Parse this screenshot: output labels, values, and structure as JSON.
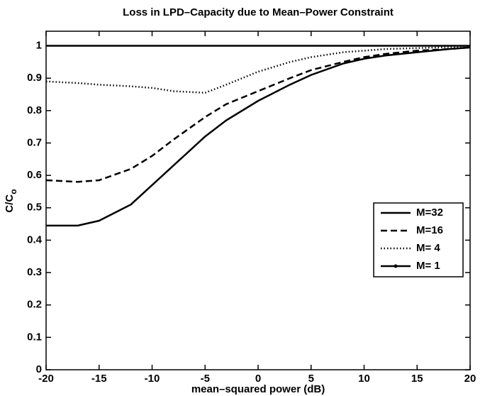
{
  "chart_data": {
    "type": "line",
    "title": "Loss in LPD–Capacity due to Mean–Power Constraint",
    "xlabel": "mean–squared power  (dB)",
    "ylabel": "C/C",
    "ylabel_sub": "o",
    "x": [
      -20,
      -17,
      -15,
      -12,
      -10,
      -8,
      -5,
      -3,
      0,
      3,
      5,
      8,
      10,
      12,
      15,
      18,
      20
    ],
    "series": [
      {
        "name": "M=32",
        "color": "#000000",
        "dash": "solid",
        "values": [
          0.445,
          0.445,
          0.46,
          0.51,
          0.57,
          0.63,
          0.72,
          0.77,
          0.83,
          0.88,
          0.91,
          0.945,
          0.96,
          0.97,
          0.98,
          0.99,
          0.995
        ]
      },
      {
        "name": "M=16",
        "color": "#000000",
        "dash": "dashed",
        "values": [
          0.585,
          0.58,
          0.585,
          0.62,
          0.66,
          0.71,
          0.78,
          0.82,
          0.86,
          0.9,
          0.925,
          0.95,
          0.965,
          0.975,
          0.985,
          0.99,
          0.995
        ]
      },
      {
        "name": "M= 4",
        "color": "#000000",
        "dash": "dotted",
        "values": [
          0.89,
          0.885,
          0.88,
          0.875,
          0.87,
          0.86,
          0.855,
          0.88,
          0.92,
          0.95,
          0.965,
          0.98,
          0.985,
          0.99,
          0.993,
          0.996,
          0.998
        ]
      },
      {
        "name": "M= 1",
        "color": "#000000",
        "dash": "dotmarker",
        "values": [
          1,
          1,
          1,
          1,
          1,
          1,
          1,
          1,
          1,
          1,
          1,
          1,
          1,
          1,
          1,
          1,
          1
        ]
      }
    ],
    "xlim": [
      -20,
      20
    ],
    "xticks": [
      -20,
      -15,
      -10,
      -5,
      0,
      5,
      10,
      15,
      20
    ],
    "ylim": [
      0,
      1.045
    ],
    "yticks": [
      0,
      0.1,
      0.2,
      0.3,
      0.4,
      0.5,
      0.6,
      0.7,
      0.8,
      0.9,
      1
    ],
    "legend": "right"
  }
}
